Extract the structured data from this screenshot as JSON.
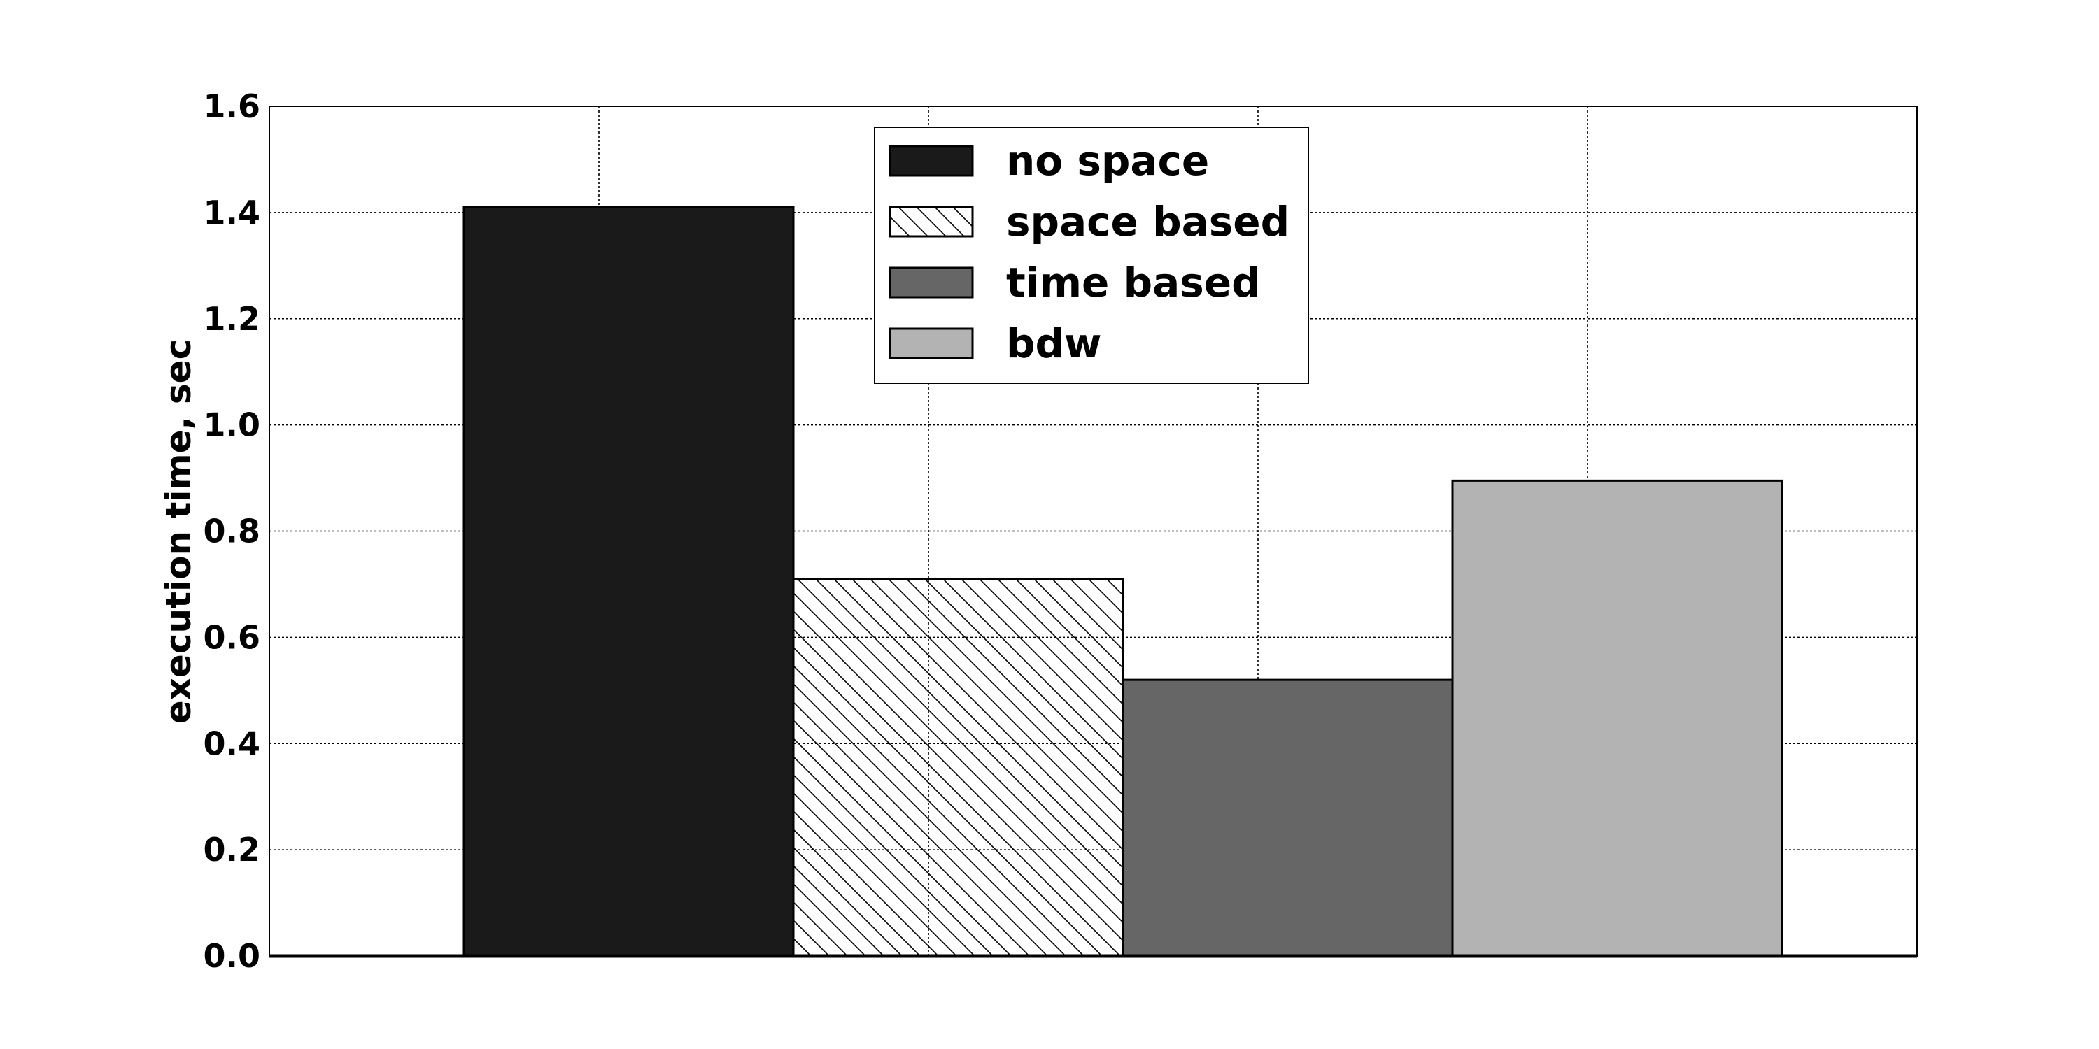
{
  "chart_data": {
    "type": "bar",
    "title": "",
    "xlabel": "",
    "ylabel": "execution time, sec",
    "ylim": [
      0,
      1.6
    ],
    "yticks": [
      "0.0",
      "0.2",
      "0.4",
      "0.6",
      "0.8",
      "1.0",
      "1.2",
      "1.4",
      "1.6"
    ],
    "grid": true,
    "legend_position": "top-center",
    "series": [
      {
        "name": "no space",
        "value": 1.41,
        "color": "#1a1a1a",
        "pattern": "solid"
      },
      {
        "name": "space based",
        "value": 0.71,
        "color": "#ffffff",
        "pattern": "hatch"
      },
      {
        "name": "time based",
        "value": 0.52,
        "color": "#666666",
        "pattern": "solid"
      },
      {
        "name": "bdw",
        "value": 0.895,
        "color": "#b3b3b3",
        "pattern": "solid"
      }
    ]
  }
}
